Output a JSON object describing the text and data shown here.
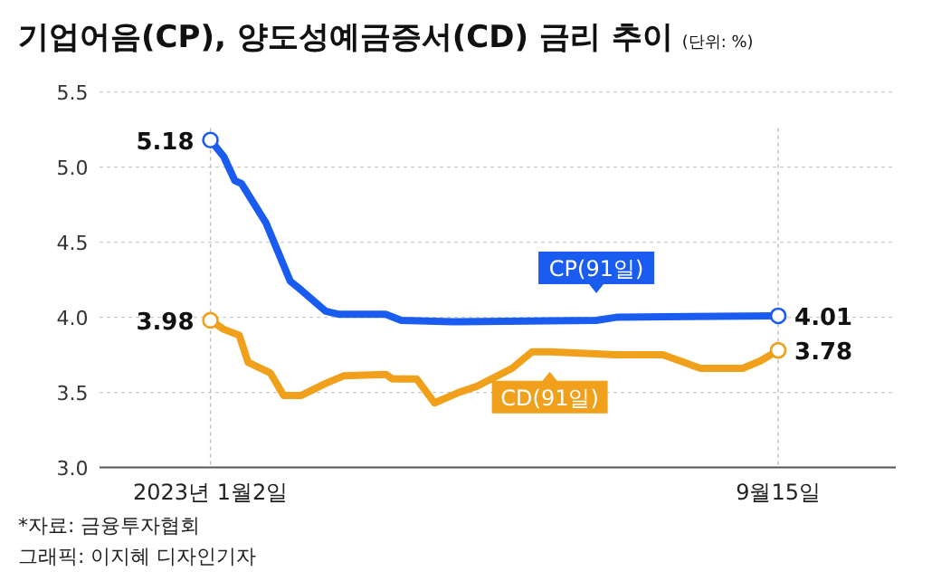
{
  "chart_data": {
    "type": "line",
    "title": "기업어음(CP), 양도성예금증서(CD) 금리 추이",
    "subtitle": "(단위: %)",
    "xlim": [
      "2022-11-13",
      "2023-11-07"
    ],
    "xticks": [
      {
        "value": "2023-01-02",
        "label": "2023년 1월2일"
      },
      {
        "value": "2023-09-15",
        "label": "9월15일"
      }
    ],
    "ylim": [
      3,
      5.5
    ],
    "yticks": [
      {
        "value": 3,
        "label": "3.0"
      },
      3.5,
      {
        "value": 4,
        "label": "4.0"
      },
      4.5,
      {
        "value": 5,
        "label": "5.0"
      },
      5.5
    ],
    "grid": true,
    "series": [
      {
        "name": "CP(91일)",
        "color": "#1a5cf0",
        "x": [
          "2023-01-02",
          "2023-01-08",
          "2023-01-13",
          "2023-01-16",
          "2023-01-27",
          "2023-02-07",
          "2023-02-12",
          "2023-02-23",
          "2023-03-01",
          "2023-03-22",
          "2023-03-29",
          "2023-04-21",
          "2023-06-25",
          "2023-07-04",
          "2023-09-15"
        ],
        "values": [
          5.18,
          5.07,
          4.91,
          4.89,
          4.63,
          4.24,
          4.18,
          4.04,
          4.02,
          4.02,
          3.98,
          3.97,
          3.98,
          4.0,
          4.01
        ],
        "value_labels": [
          "5.18",
          null,
          null,
          null,
          null,
          null,
          null,
          null,
          null,
          null,
          null,
          null,
          null,
          null,
          "4.01"
        ]
      },
      {
        "name": "CD(91일)",
        "color": "#f0a01a",
        "x": [
          "2023-01-02",
          "2023-01-08",
          "2023-01-15",
          "2023-01-19",
          "2023-01-29",
          "2023-02-04",
          "2023-02-12",
          "2023-02-23",
          "2023-03-03",
          "2023-03-22",
          "2023-03-25",
          "2023-04-05",
          "2023-04-13",
          "2023-04-24",
          "2023-05-02",
          "2023-05-18",
          "2023-05-27",
          "2023-06-04",
          "2023-07-04",
          "2023-07-25",
          "2023-08-11",
          "2023-08-30",
          "2023-09-07",
          "2023-09-15"
        ],
        "values": [
          3.98,
          3.92,
          3.88,
          3.7,
          3.63,
          3.48,
          3.48,
          3.56,
          3.61,
          3.62,
          3.59,
          3.59,
          3.43,
          3.5,
          3.54,
          3.66,
          3.77,
          3.77,
          3.75,
          3.75,
          3.66,
          3.66,
          3.71,
          3.78
        ],
        "value_labels": [
          "3.98",
          null,
          null,
          null,
          null,
          null,
          null,
          null,
          null,
          null,
          null,
          null,
          null,
          null,
          null,
          null,
          null,
          null,
          null,
          null,
          null,
          null,
          null,
          "3.78"
        ]
      }
    ],
    "annotations": [
      "*자료: 금융투자협회",
      "그래픽: 이지혜 디자인기자"
    ]
  }
}
